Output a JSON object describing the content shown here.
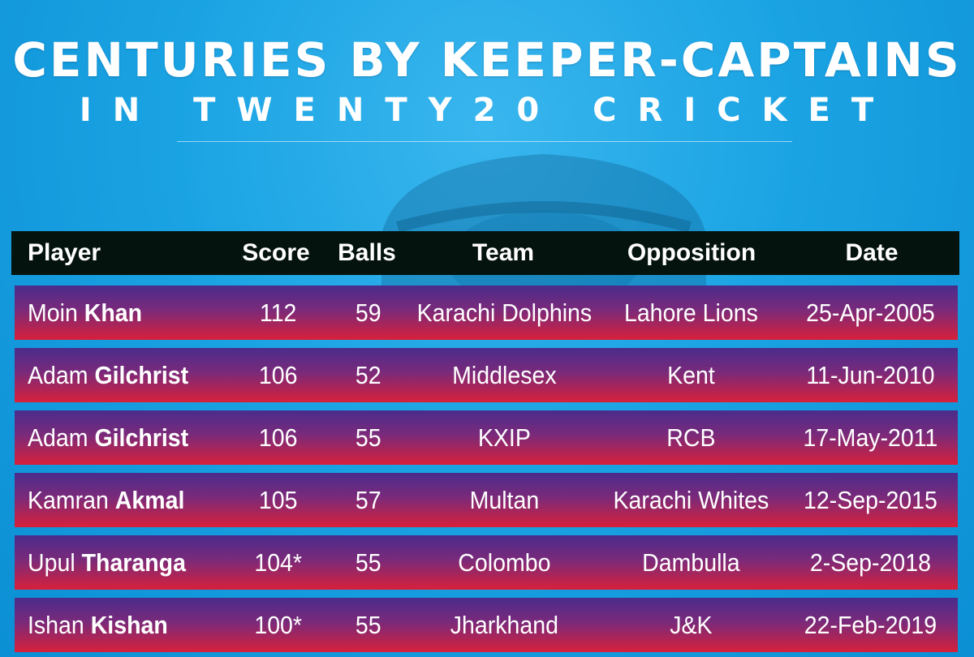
{
  "title": "CENTURIES BY KEEPER-CAPTAINS",
  "subtitle": "IN TWENTY20 CRICKET",
  "headers": {
    "player": "Player",
    "score": "Score",
    "balls": "Balls",
    "team": "Team",
    "opposition": "Opposition",
    "date": "Date"
  },
  "rows": [
    {
      "first": "Moin",
      "last": "Khan",
      "score": "112",
      "balls": "59",
      "team": "Karachi Dolphins",
      "opposition": "Lahore Lions",
      "date": "25-Apr-2005"
    },
    {
      "first": "Adam",
      "last": "Gilchrist",
      "score": "106",
      "balls": "52",
      "team": "Middlesex",
      "opposition": "Kent",
      "date": "11-Jun-2010"
    },
    {
      "first": "Adam",
      "last": "Gilchrist",
      "score": "106",
      "balls": "55",
      "team": "KXIP",
      "opposition": "RCB",
      "date": "17-May-2011"
    },
    {
      "first": "Kamran",
      "last": "Akmal",
      "score": "105",
      "balls": "57",
      "team": "Multan",
      "opposition": "Karachi Whites",
      "date": "12-Sep-2015"
    },
    {
      "first": "Upul",
      "last": "Tharanga",
      "score": "104*",
      "balls": "55",
      "team": "Colombo",
      "opposition": "Dambulla",
      "date": "2-Sep-2018"
    },
    {
      "first": "Ishan",
      "last": "Kishan",
      "score": "100*",
      "balls": "55",
      "team": "Jharkhand",
      "opposition": "J&K",
      "date": "22-Feb-2019"
    }
  ],
  "colors": {
    "background": "#1aa3e3",
    "header": "#05130f",
    "row_top": "#4a2c8c",
    "row_bottom": "#d8203a"
  }
}
